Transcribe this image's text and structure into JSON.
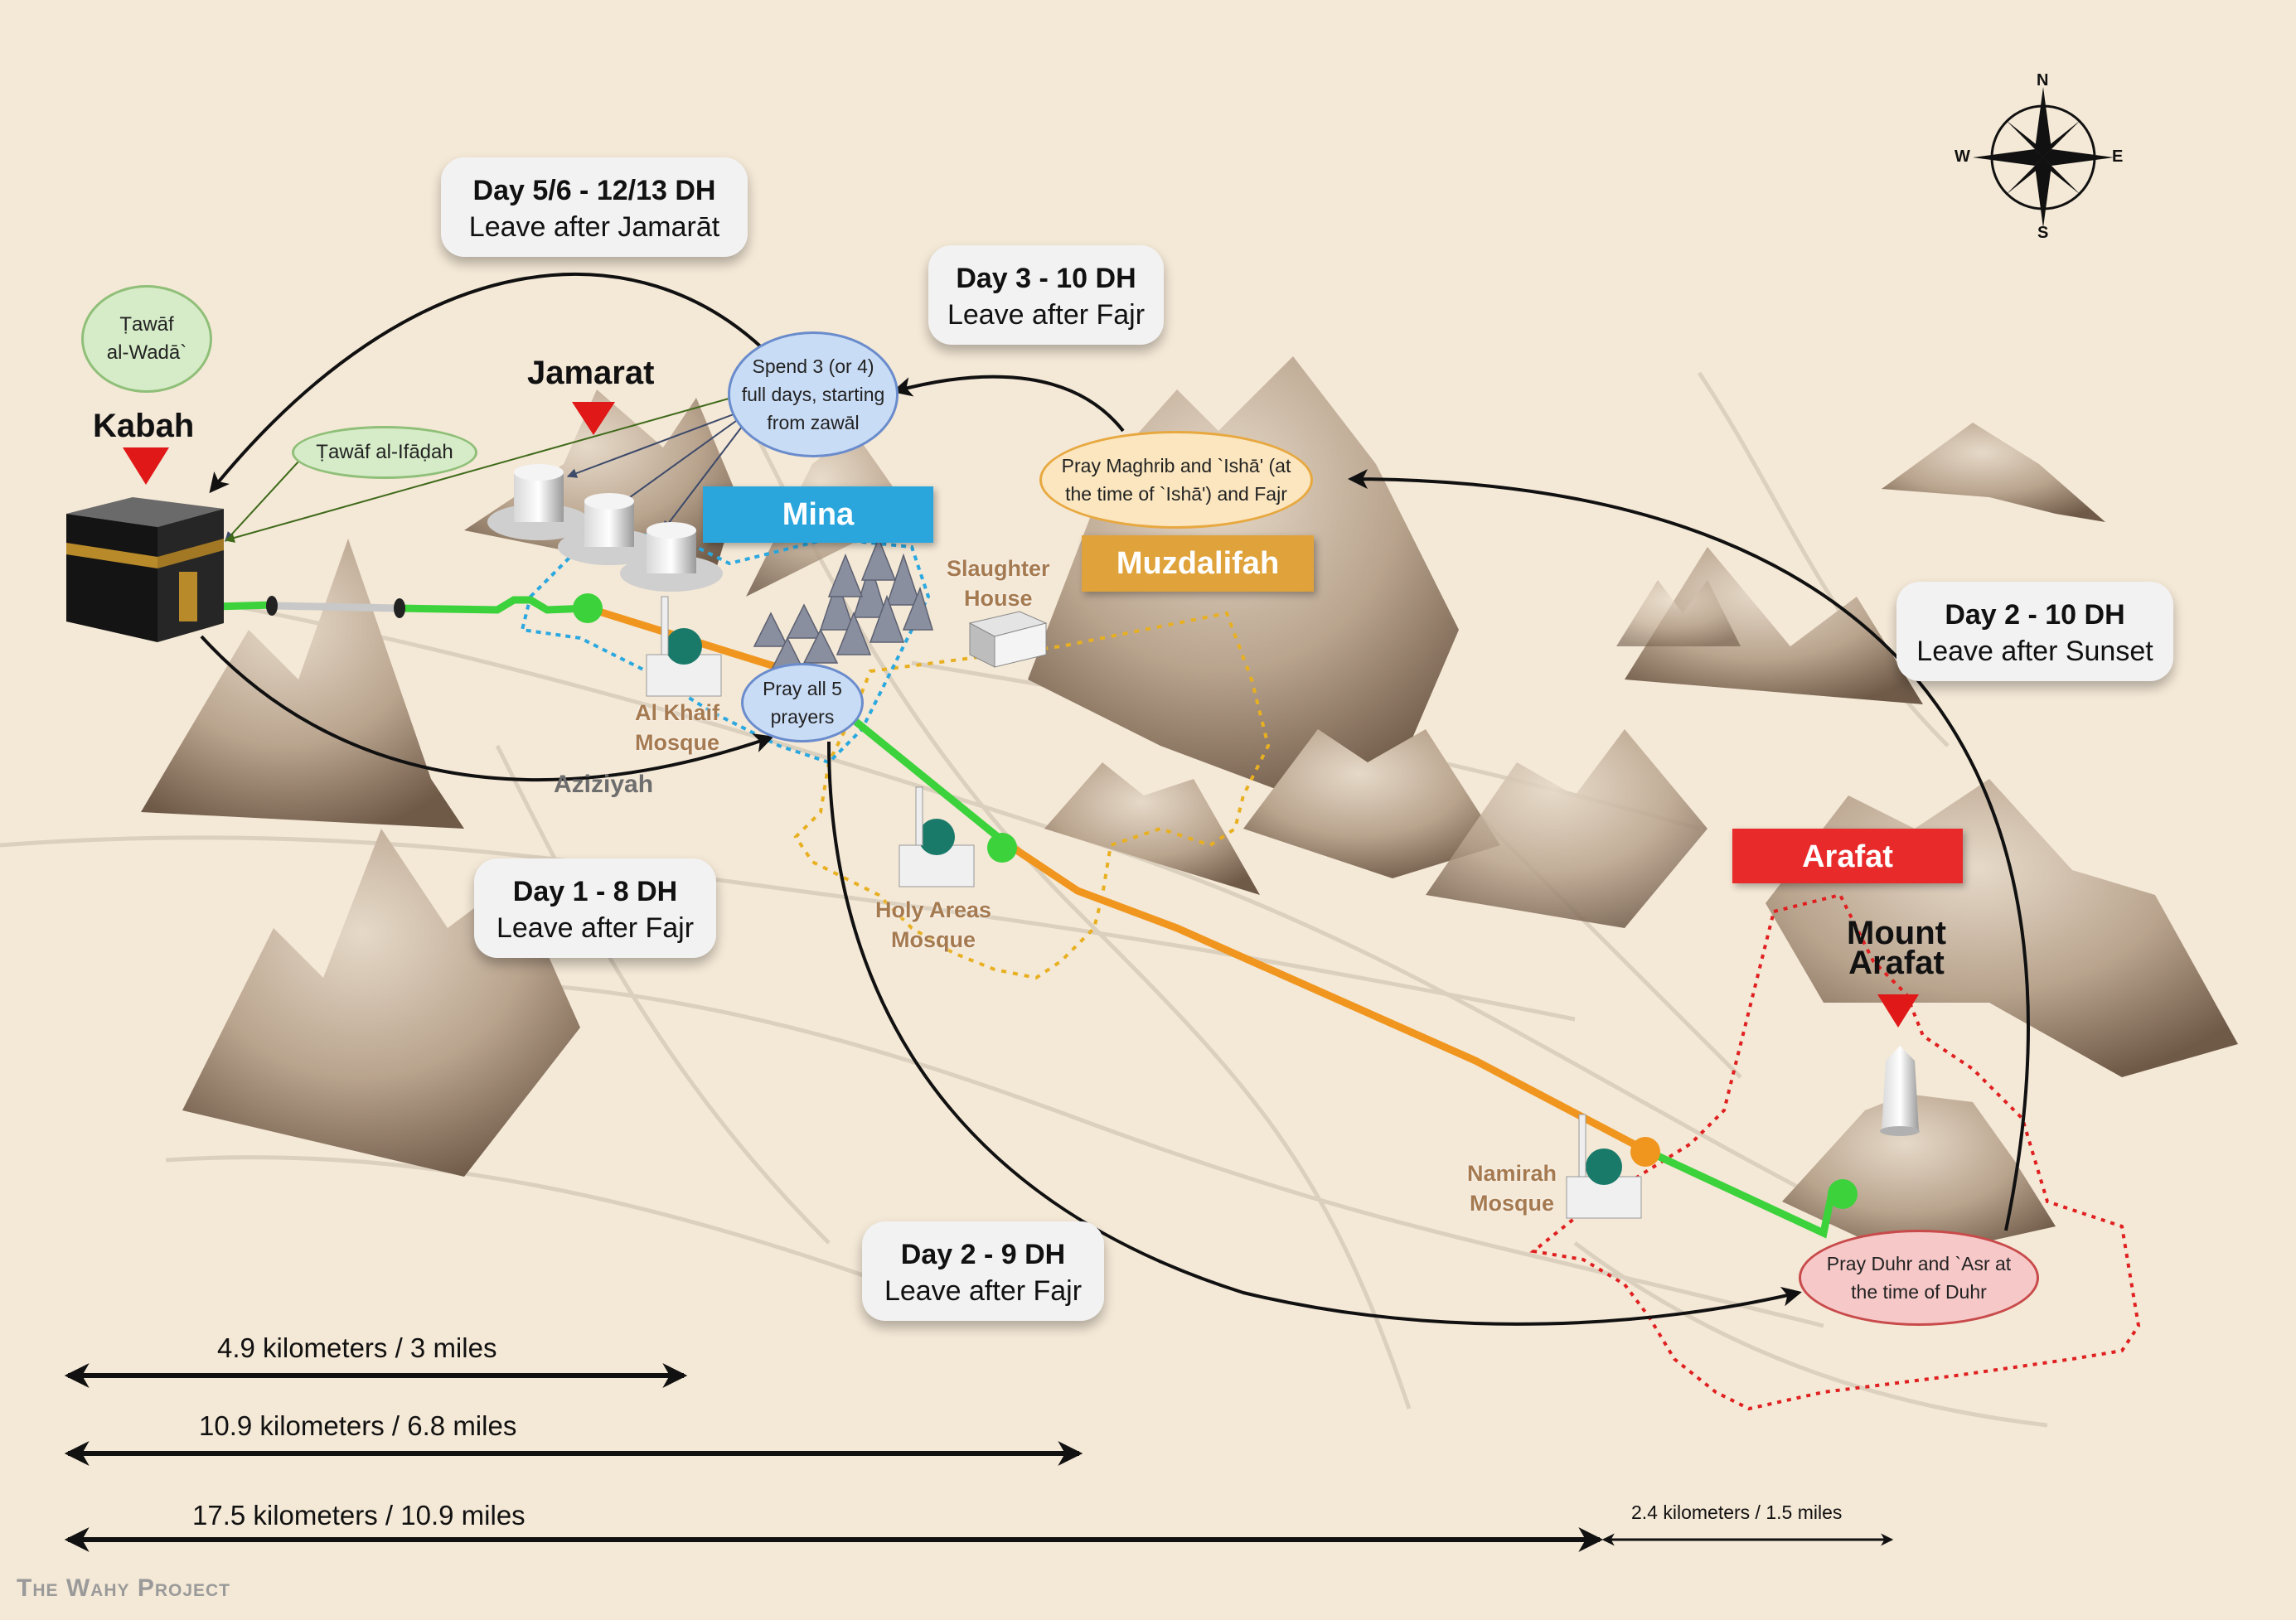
{
  "colors": {
    "background": "#f4e8d6",
    "green_route": "#3cd23c",
    "orange_route": "#f0961e",
    "mina_banner": "#2ba6dd",
    "muzdalifah_banner": "#e0a23a",
    "arafat_banner": "#e82a2a",
    "marker_red": "#e01818",
    "mina_boundary": "#2aa8e0",
    "muzdalifah_boundary": "#e8b020",
    "arafat_boundary": "#e02020"
  },
  "places": {
    "kabah": "Kabah",
    "jamarat": "Jamarat",
    "mount_arafat_1": "Mount",
    "mount_arafat_2": "Arafat",
    "slaughter_1": "Slaughter",
    "slaughter_2": "House",
    "al_khaif_1": "Al Khaif",
    "al_khaif_2": "Mosque",
    "holy_areas_1": "Holy Areas",
    "holy_areas_2": "Mosque",
    "namirah_1": "Namirah",
    "namirah_2": "Mosque",
    "aziziyah": "Aziziyah"
  },
  "banners": {
    "mina": "Mina",
    "muzdalifah": "Muzdalifah",
    "arafat": "Arafat"
  },
  "days": {
    "d1": {
      "title": "Day 1 - 8 DH",
      "sub": "Leave after Fajr"
    },
    "d2a": {
      "title": "Day 2 - 9 DH",
      "sub": "Leave after Fajr"
    },
    "d2b": {
      "title": "Day 2 - 10 DH",
      "sub": "Leave after Sunset"
    },
    "d3": {
      "title": "Day 3 - 10 DH",
      "sub": "Leave after Fajr"
    },
    "d5": {
      "title": "Day 5/6 - 12/13 DH",
      "sub": "Leave after Jamarāt"
    }
  },
  "bubbles": {
    "tawaf_wada_1": "Ṭawāf",
    "tawaf_wada_2": "al-Wadā`",
    "tawaf_ifadah": "Ṭawāf al-Ifāḍah",
    "spend_1": "Spend 3 (or 4)",
    "spend_2": "full days, starting",
    "spend_3": "from zawāl",
    "pray5_1": "Pray all 5",
    "pray5_2": "prayers",
    "muzd_1": "Pray Maghrib and `Ishā' (at",
    "muzd_2": "the time of `Ishā') and Fajr",
    "arafat_1": "Pray Duhr and `Asr at",
    "arafat_2": "the time of Duhr"
  },
  "distances": {
    "d1": "4.9 kilometers / 3 miles",
    "d2": "10.9 kilometers / 6.8 miles",
    "d3": "17.5 kilometers / 10.9 miles",
    "d4": "2.4 kilometers / 1.5 miles"
  },
  "compass": {
    "n": "N",
    "e": "E",
    "s": "S",
    "w": "W"
  },
  "watermark": "The Wahy Project"
}
